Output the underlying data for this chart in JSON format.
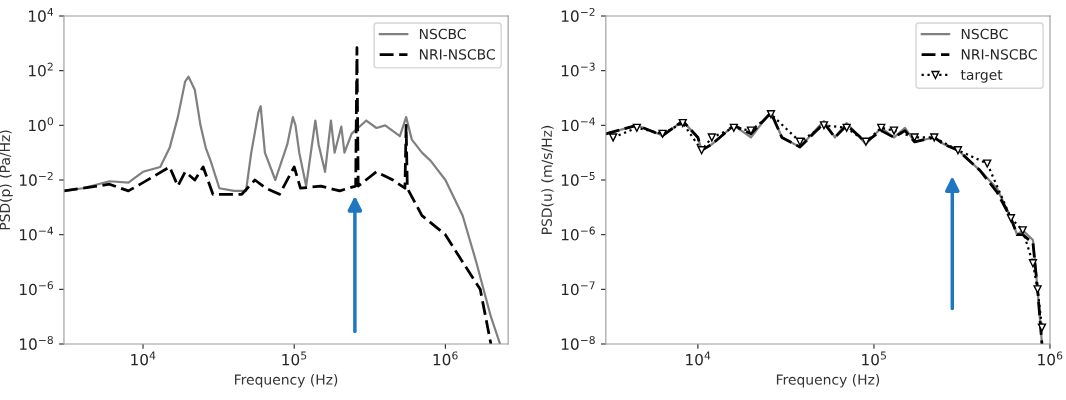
{
  "chart_data": [
    {
      "type": "line",
      "xlabel": "Frequency (Hz)",
      "ylabel": "PSD(p) (Pa/Hz)",
      "log": "xy",
      "xlim": [
        3000,
        2600000
      ],
      "ylim": [
        1e-08,
        10000
      ],
      "xticks": [
        {
          "value": 10000,
          "label": "10$^{4}$"
        },
        {
          "value": 100000,
          "label": "10$^{5}$"
        },
        {
          "value": 1000000,
          "label": "10$^{6}$"
        }
      ],
      "yticks": [
        {
          "value": 1e-08,
          "label": "10$^{−8}$"
        },
        {
          "value": 1e-06,
          "label": "10$^{−6}$"
        },
        {
          "value": 0.0001,
          "label": "10$^{−4}$"
        },
        {
          "value": 0.01,
          "label": "10$^{−2}$"
        },
        {
          "value": 1,
          "label": "10$^{0}$"
        },
        {
          "value": 100,
          "label": "10$^{2}$"
        },
        {
          "value": 10000,
          "label": "10$^{4}$"
        }
      ],
      "legend": "top right",
      "series": [
        {
          "name": "NSCBC",
          "color": "#808080",
          "line_style": "solid",
          "x": [
            3000,
            4000,
            6000,
            8000,
            10000,
            13000,
            15000,
            17000,
            19000,
            20000,
            22000,
            24000,
            26000,
            28000,
            32000,
            40000,
            48000,
            52000,
            58000,
            60000,
            64000,
            75000,
            90000,
            98000,
            102000,
            108000,
            120000,
            138000,
            145000,
            160000,
            175000,
            185000,
            205000,
            215000,
            240000,
            300000,
            350000,
            400000,
            500000,
            550000,
            600000,
            700000,
            800000,
            1000000,
            1300000,
            1600000,
            2000000,
            2300000
          ],
          "values": [
            0.004,
            0.005,
            0.009,
            0.008,
            0.02,
            0.03,
            0.15,
            2,
            40,
            60,
            20,
            1,
            0.15,
            0.05,
            0.005,
            0.004,
            0.004,
            0.1,
            3,
            5,
            0.1,
            0.01,
            0.2,
            2,
            1,
            0.1,
            0.006,
            1.5,
            0.2,
            0.02,
            1.5,
            0.1,
            0.9,
            0.1,
            0.5,
            1.5,
            0.8,
            1,
            0.4,
            2,
            0.3,
            0.1,
            0.05,
            0.01,
            0.0005,
            1e-05,
            1e-07,
            1e-08
          ]
        },
        {
          "name": "NRI-NSCBC",
          "color": "#000000",
          "line_style": "dashed",
          "x": [
            3000,
            6000,
            8000,
            10000,
            15000,
            17000,
            19000,
            22000,
            25000,
            29000,
            35000,
            45000,
            55000,
            65000,
            80000,
            100000,
            110000,
            150000,
            200000,
            255000,
            260000,
            265000,
            350000,
            450000,
            540000,
            550000,
            560000,
            700000,
            1000000,
            1300000,
            1700000,
            2000000
          ],
          "values": [
            0.004,
            0.007,
            0.004,
            0.008,
            0.03,
            0.006,
            0.02,
            0.01,
            0.03,
            0.003,
            0.003,
            0.003,
            0.01,
            0.005,
            0.003,
            0.03,
            0.005,
            0.006,
            0.004,
            0.006,
            700,
            0.006,
            0.02,
            0.01,
            0.005,
            1,
            0.005,
            0.0005,
            0.0001,
            1e-05,
            1e-06,
            1e-08
          ]
        }
      ]
    },
    {
      "type": "line",
      "xlabel": "Frequency (Hz)",
      "ylabel": "PSD(u) (m/s/Hz)",
      "log": "xy",
      "xlim": [
        3000,
        1000000
      ],
      "ylim": [
        1e-08,
        0.01
      ],
      "xticks": [
        {
          "value": 10000,
          "label": "10$^{4}$"
        },
        {
          "value": 100000,
          "label": "10$^{5}$"
        },
        {
          "value": 1000000,
          "label": "10$^{6}$"
        }
      ],
      "yticks": [
        {
          "value": 1e-08,
          "label": "10$^{−8}$"
        },
        {
          "value": 1e-07,
          "label": "10$^{−7}$"
        },
        {
          "value": 1e-06,
          "label": "10$^{−6}$"
        },
        {
          "value": 1e-05,
          "label": "10$^{−5}$"
        },
        {
          "value": 0.0001,
          "label": "10$^{−4}$"
        },
        {
          "value": 0.001,
          "label": "10$^{−3}$"
        },
        {
          "value": 0.01,
          "label": "10$^{−2}$"
        }
      ],
      "legend": "top right",
      "series": [
        {
          "name": "NSCBC",
          "color": "#808080",
          "line_style": "solid",
          "x": [
            3000,
            4500,
            6300,
            8200,
            10000,
            10500,
            12000,
            16000,
            20000,
            26000,
            30000,
            38000,
            52000,
            60000,
            70000,
            90000,
            110000,
            130000,
            150000,
            170000,
            220000,
            250000,
            300000,
            400000,
            500000,
            600000,
            650000,
            700000,
            800000,
            850000,
            900000
          ],
          "values": [
            7e-05,
            0.0001,
            6.5e-05,
            0.00012,
            6e-05,
            3.5e-05,
            4.5e-05,
            0.0001,
            6e-05,
            0.00018,
            6e-05,
            4e-05,
            0.00012,
            6e-05,
            0.00011,
            4.5e-05,
            9e-05,
            6e-05,
            9e-05,
            5e-05,
            6e-05,
            4.5e-05,
            3.5e-05,
            1.5e-05,
            7e-06,
            2e-06,
            1e-06,
            1.2e-06,
            8e-07,
            1e-07,
            1e-08
          ]
        },
        {
          "name": "NRI-NSCBC",
          "color": "#000000",
          "line_style": "dashed",
          "x": [
            3000,
            4500,
            6300,
            8200,
            10000,
            10500,
            12000,
            16000,
            20000,
            26000,
            30000,
            38000,
            52000,
            60000,
            70000,
            90000,
            110000,
            130000,
            150000,
            170000,
            220000,
            250000,
            300000,
            400000,
            500000,
            600000,
            650000,
            700000,
            800000,
            850000,
            900000
          ],
          "values": [
            7e-05,
            0.0001,
            6.5e-05,
            0.00012,
            6e-05,
            3.5e-05,
            4.5e-05,
            0.0001,
            7e-05,
            0.00017,
            6e-05,
            4e-05,
            0.00011,
            6e-05,
            0.0001,
            5e-05,
            8e-05,
            6e-05,
            8e-05,
            5e-05,
            6e-05,
            4.5e-05,
            3.5e-05,
            1.5e-05,
            6e-06,
            2e-06,
            1e-06,
            1e-06,
            7e-07,
            1e-07,
            1e-08
          ]
        },
        {
          "name": "target",
          "color": "#000000",
          "line_style": "dotted",
          "marker": "triangle",
          "x": [
            3300,
            4500,
            6300,
            8200,
            10500,
            12000,
            16000,
            20000,
            26000,
            38000,
            52000,
            70000,
            90000,
            110000,
            130000,
            170000,
            220000,
            300000,
            440000,
            600000,
            700000,
            800000,
            850000,
            900000
          ],
          "values": [
            6e-05,
            9e-05,
            7e-05,
            0.00011,
            3.5e-05,
            6e-05,
            9e-05,
            8e-05,
            0.00016,
            5e-05,
            0.0001,
            9e-05,
            5e-05,
            9e-05,
            8e-05,
            6e-05,
            6e-05,
            3.5e-05,
            2e-05,
            2e-06,
            1.2e-06,
            3e-07,
            1e-07,
            2e-08
          ]
        }
      ]
    }
  ]
}
